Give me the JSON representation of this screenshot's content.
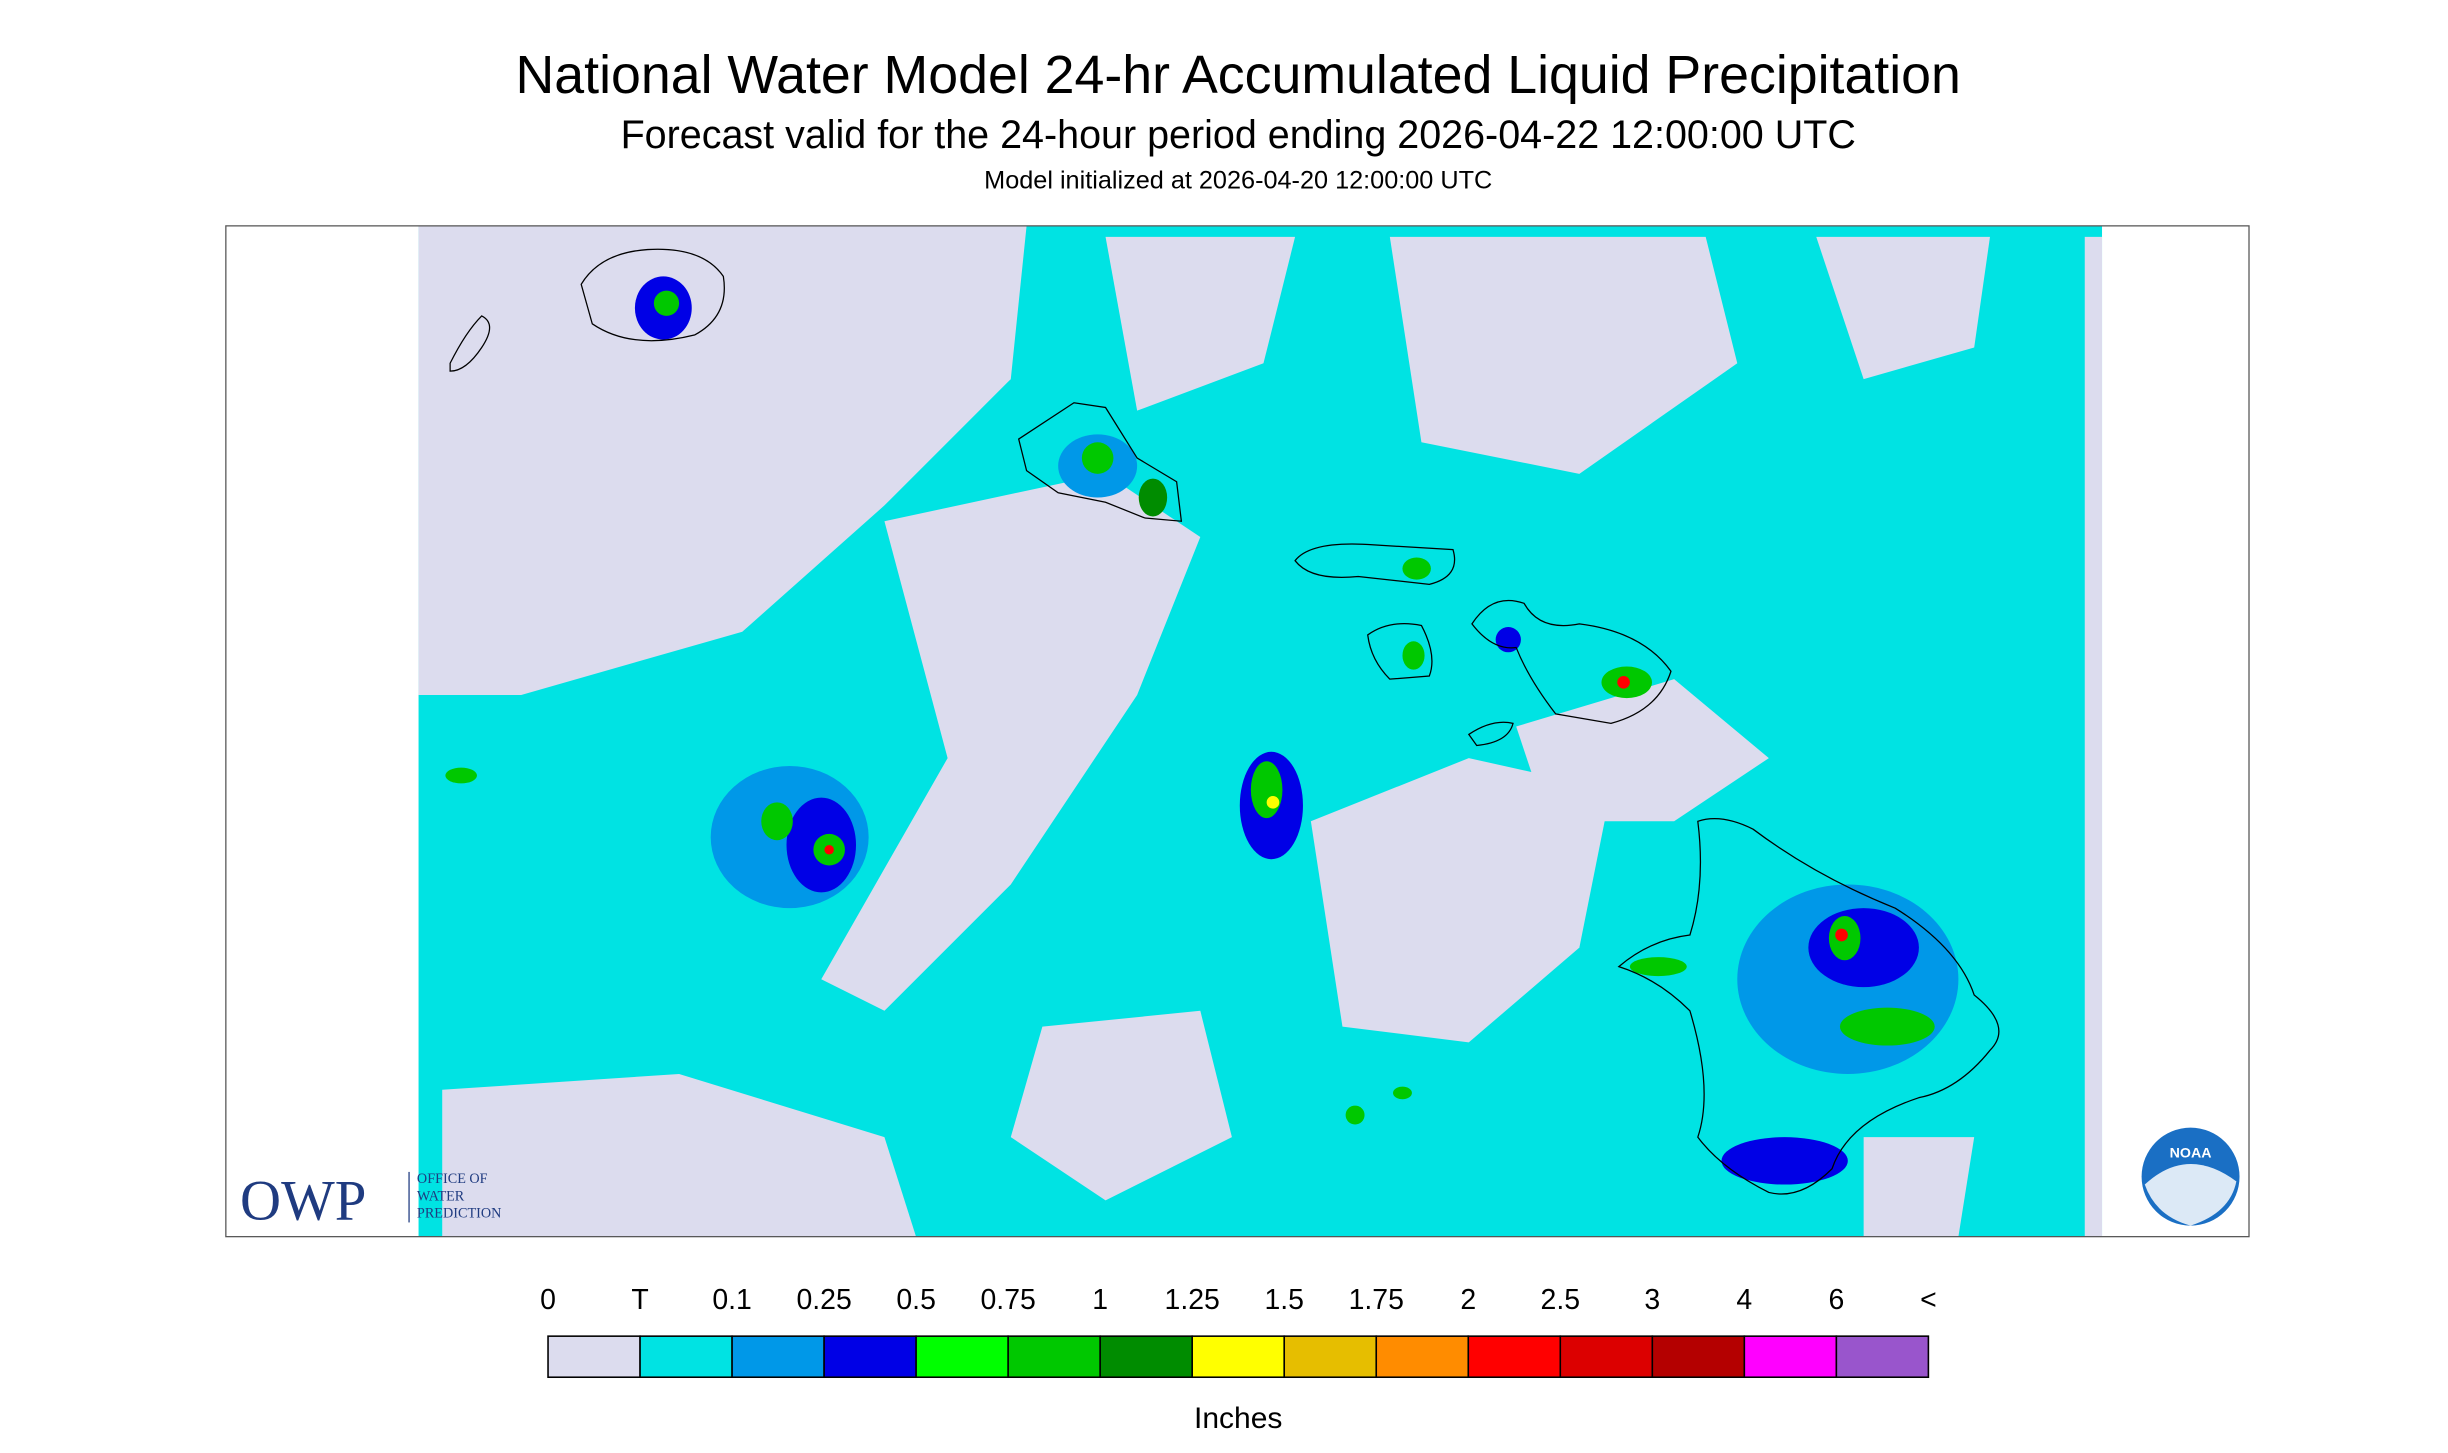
{
  "header": {
    "title": "National Water Model 24-hr Accumulated Liquid Precipitation",
    "subtitle": "Forecast valid for the 24-hour period ending 2026-04-22 12:00:00 UTC",
    "init": "Model initialized at 2026-04-20 12:00:00 UTC"
  },
  "logos": {
    "owp": "OWP",
    "owp_lines": [
      "OFFICE OF",
      "WATER",
      "PREDICTION"
    ],
    "noaa": "NOAA"
  },
  "legend": {
    "labels": [
      "0",
      "T",
      "0.1",
      "0.25",
      "0.5",
      "0.75",
      "1",
      "1.25",
      "1.5",
      "1.75",
      "2",
      "2.5",
      "3",
      "4",
      "6",
      "<"
    ],
    "colors": [
      "#dcdcee",
      "#00e3e3",
      "#0098e8",
      "#0000e6",
      "#00ff00",
      "#00c800",
      "#008c00",
      "#ffff00",
      "#e6be00",
      "#ff8c00",
      "#ff0000",
      "#dc0000",
      "#b40000",
      "#ff00ff",
      "#9955cc"
    ],
    "unit": "Inches"
  }
}
